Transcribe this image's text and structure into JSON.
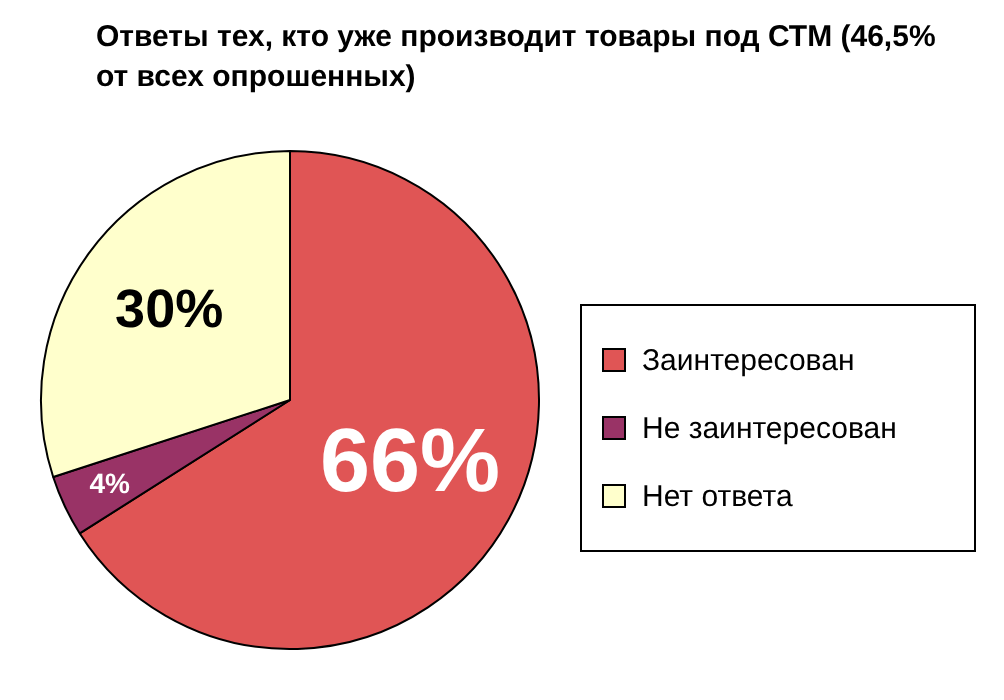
{
  "chart_data": {
    "type": "pie",
    "title": "Ответы тех, кто уже производит товары под СТМ (46,5% от всех опрошенных)",
    "categories": [
      "Заинтересован",
      "Не заинтересован",
      "Нет ответа"
    ],
    "values": [
      66,
      4,
      30
    ],
    "colors": [
      "#e05555",
      "#993366",
      "#ffffcc"
    ],
    "value_labels": [
      "66%",
      "4%",
      "30%"
    ],
    "legend": "right"
  }
}
